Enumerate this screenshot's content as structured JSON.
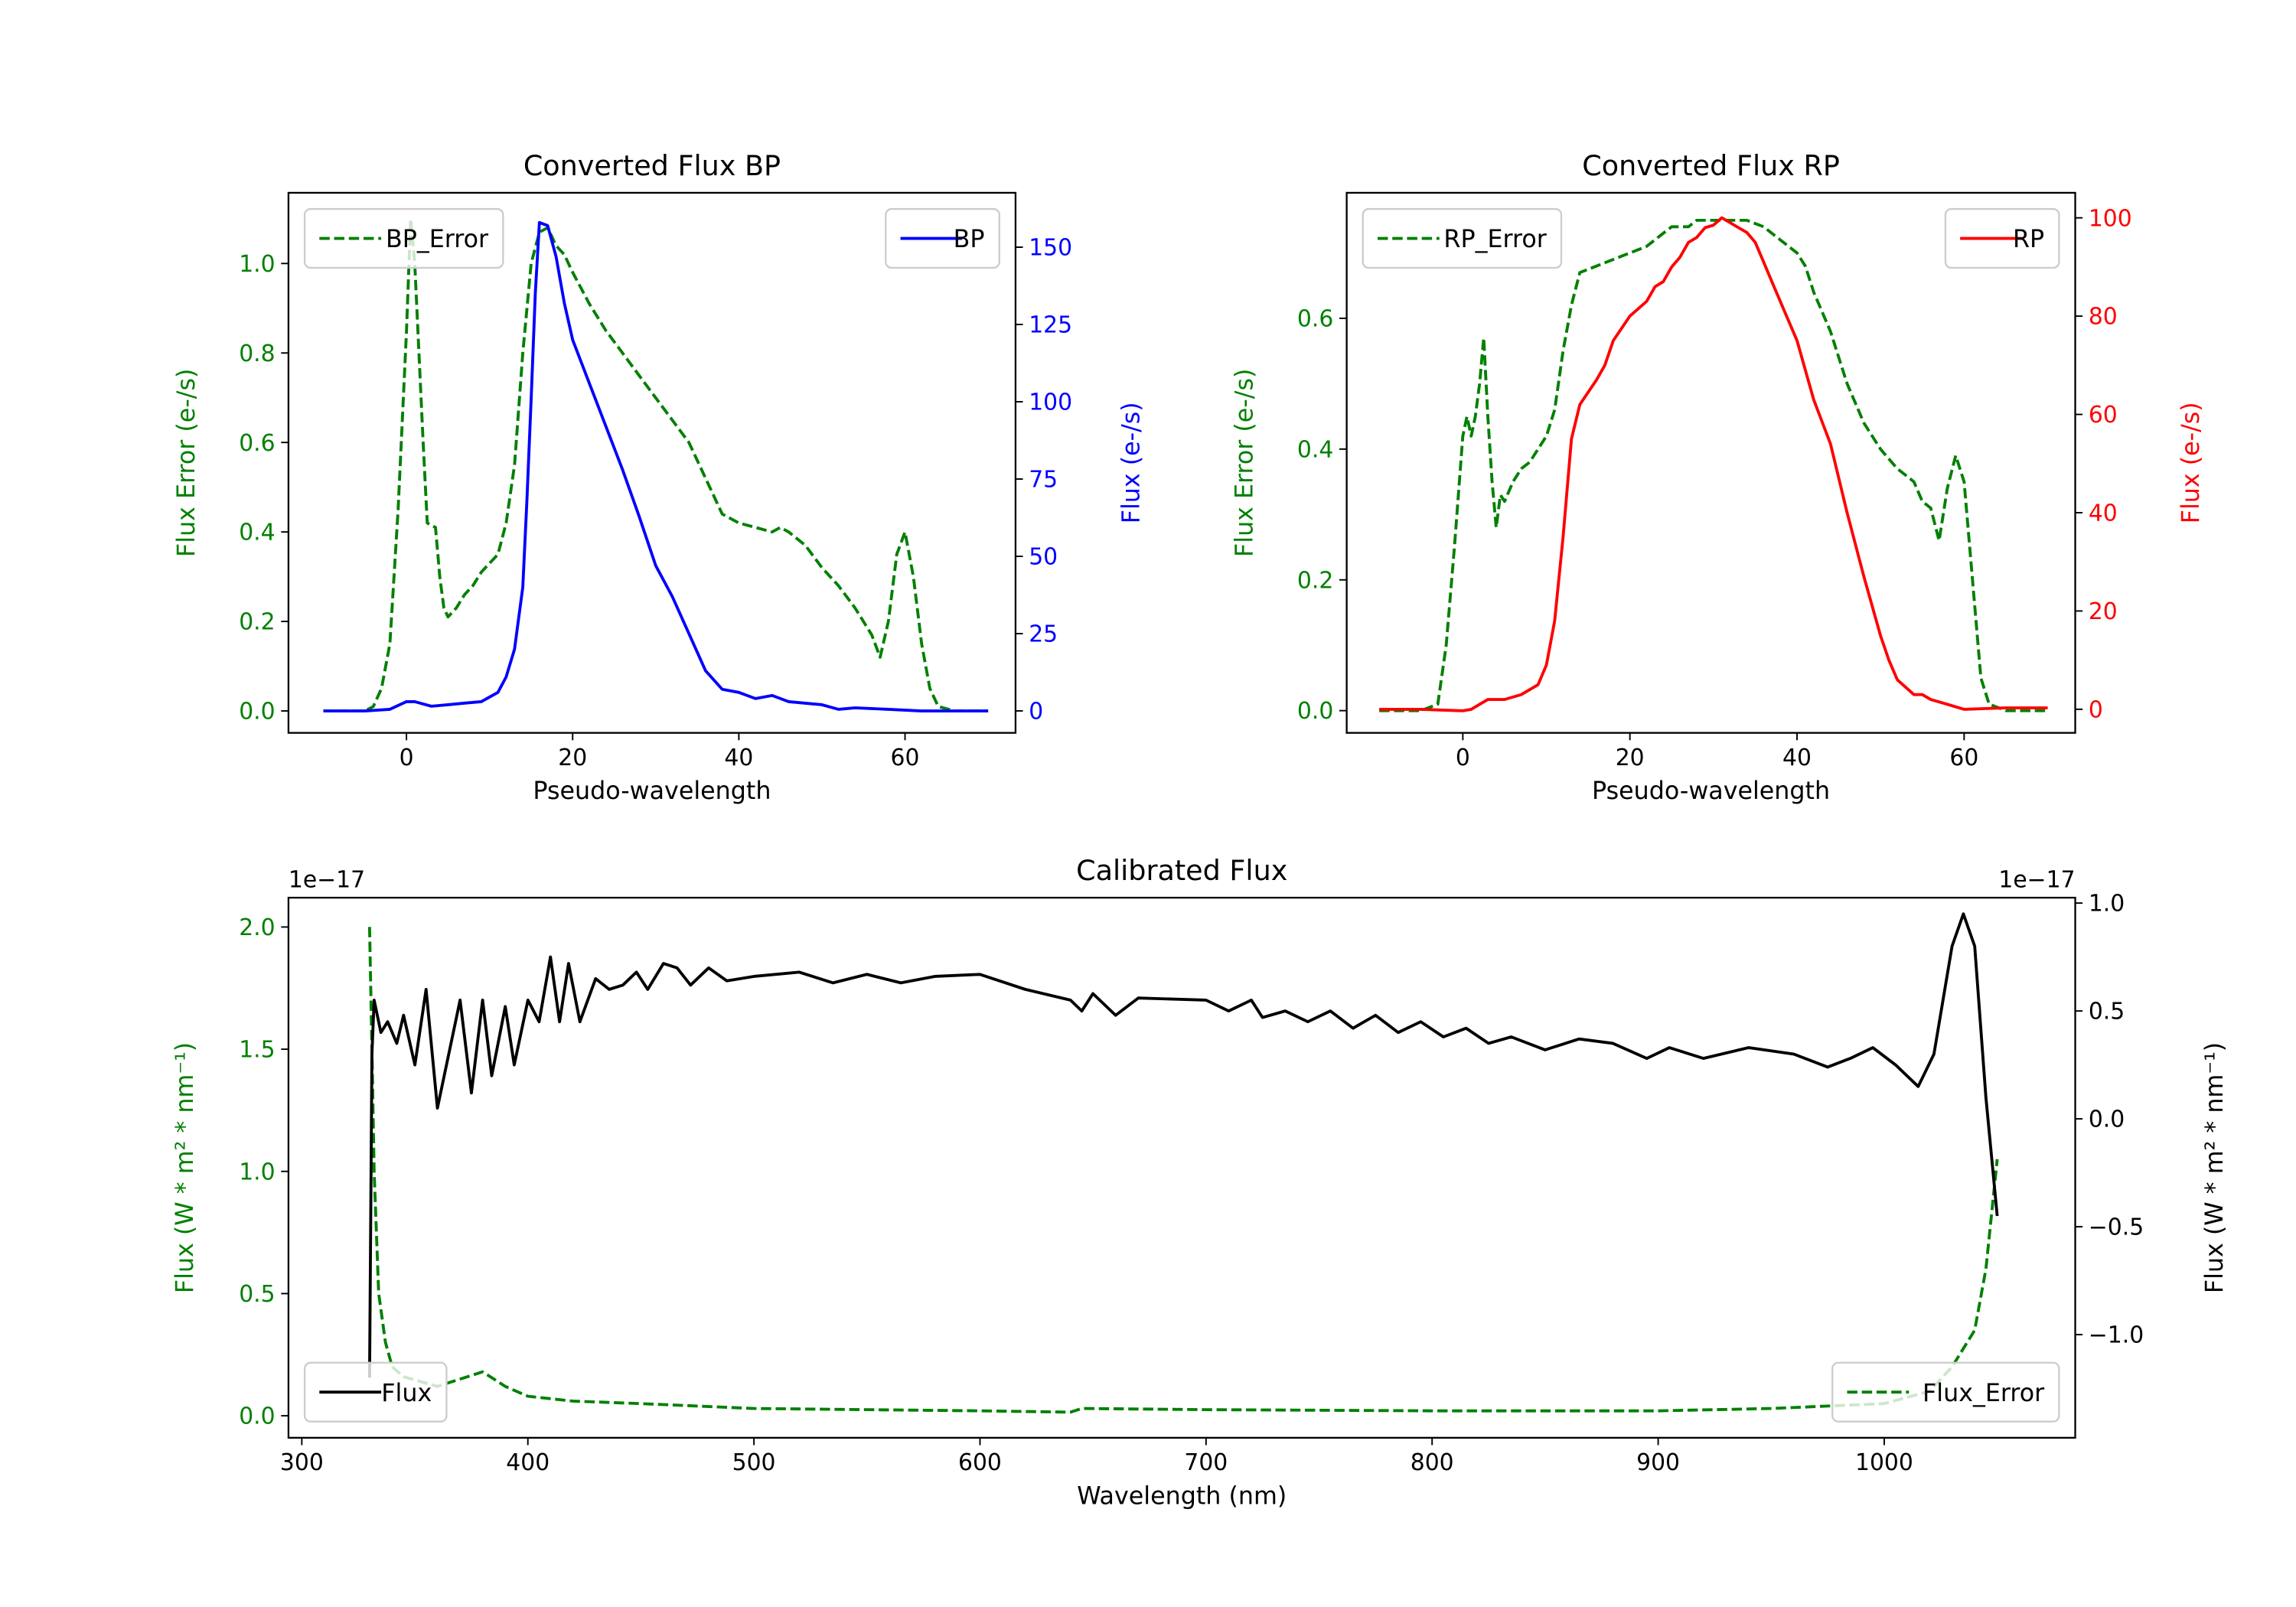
{
  "chart_data": [
    {
      "type": "line",
      "title": "Converted Flux BP",
      "xlabel": "Pseudo-wavelength",
      "ylabel_left": "Flux Error (e-/s)",
      "ylabel_right": "Flux (e-/s)",
      "left_color": "#008000",
      "right_color": "#0000ff",
      "xlim": [
        -14.2,
        73.3
      ],
      "ylim_left": [
        -0.049,
        1.158
      ],
      "ylim_right": [
        -7.1,
        167.6
      ],
      "xticks": {
        "values": [
          0,
          20,
          40,
          60
        ],
        "labels": [
          "0",
          "20",
          "40",
          "60"
        ]
      },
      "yticks_left": {
        "values": [
          0,
          0.2,
          0.4,
          0.6,
          0.8,
          1.0
        ],
        "labels": [
          "0.0",
          "0.2",
          "0.4",
          "0.6",
          "0.8",
          "1.0"
        ]
      },
      "yticks_right": {
        "values": [
          0,
          25,
          50,
          75,
          100,
          125,
          150
        ],
        "labels": [
          "0",
          "25",
          "50",
          "75",
          "100",
          "125",
          "150"
        ]
      },
      "grid": false,
      "legend_left": "upper-left",
      "legend_right": "upper-right",
      "series": [
        {
          "name": "BP_Error",
          "axis": "left",
          "style": "dashed",
          "color": "#008000",
          "x": [
            -10,
            -5,
            -4,
            -3,
            -2,
            -1,
            0,
            0.5,
            1,
            2,
            2.5,
            3.5,
            4,
            4.5,
            5,
            6,
            7,
            8,
            9,
            10,
            11,
            12,
            13,
            14,
            15,
            16,
            17,
            18,
            19,
            20,
            22,
            24,
            26,
            28,
            30,
            32,
            34,
            36,
            38,
            40,
            42,
            44,
            45,
            46,
            48,
            50,
            52,
            54,
            56,
            57,
            58,
            59,
            60,
            61,
            62,
            63,
            64,
            66,
            70
          ],
          "y": [
            0,
            0,
            0.01,
            0.05,
            0.15,
            0.45,
            0.85,
            1.1,
            1.0,
            0.6,
            0.42,
            0.41,
            0.3,
            0.23,
            0.21,
            0.23,
            0.26,
            0.28,
            0.31,
            0.33,
            0.35,
            0.42,
            0.55,
            0.8,
            1.0,
            1.07,
            1.08,
            1.04,
            1.02,
            0.98,
            0.91,
            0.85,
            0.8,
            0.75,
            0.7,
            0.65,
            0.6,
            0.52,
            0.44,
            0.42,
            0.41,
            0.4,
            0.41,
            0.4,
            0.37,
            0.32,
            0.28,
            0.23,
            0.17,
            0.12,
            0.2,
            0.35,
            0.4,
            0.3,
            0.15,
            0.05,
            0.01,
            0,
            0
          ]
        },
        {
          "name": "BP",
          "axis": "right",
          "style": "solid",
          "color": "#0000ff",
          "x": [
            -10,
            -5,
            -2,
            0,
            1,
            3,
            5,
            7,
            9,
            11,
            12,
            13,
            14,
            14.5,
            15,
            15.5,
            16,
            17,
            18,
            19,
            20,
            22,
            24,
            26,
            28,
            30,
            32,
            34,
            36,
            38,
            40,
            42,
            44,
            46,
            50,
            52,
            54,
            58,
            62,
            70
          ],
          "y": [
            0,
            0,
            0.5,
            3,
            3,
            1.5,
            2,
            2.5,
            3,
            6,
            11,
            20,
            40,
            68,
            101,
            135,
            158,
            157,
            147,
            132,
            120,
            106,
            92,
            78,
            63,
            47,
            37,
            25,
            13,
            7,
            6,
            4,
            5,
            3,
            2,
            0.5,
            1,
            0.5,
            0,
            0
          ]
        }
      ]
    },
    {
      "type": "line",
      "title": "Converted Flux RP",
      "xlabel": "Pseudo-wavelength",
      "ylabel_left": "Flux Error (e-/s)",
      "ylabel_right": "Flux (e-/s)",
      "left_color": "#008000",
      "right_color": "#ff0000",
      "xlim": [
        -13.9,
        73.3
      ],
      "ylim_left": [
        -0.034,
        0.792
      ],
      "ylim_right": [
        -4.8,
        105.1
      ],
      "xticks": {
        "values": [
          0,
          20,
          40,
          60
        ],
        "labels": [
          "0",
          "20",
          "40",
          "60"
        ]
      },
      "yticks_left": {
        "values": [
          0,
          0.2,
          0.4,
          0.6
        ],
        "labels": [
          "0.0",
          "0.2",
          "0.4",
          "0.6"
        ]
      },
      "yticks_right": {
        "values": [
          0,
          20,
          40,
          60,
          80,
          100
        ],
        "labels": [
          "0",
          "20",
          "40",
          "60",
          "80",
          "100"
        ]
      },
      "grid": false,
      "legend_left": "upper-left",
      "legend_right": "upper-right",
      "series": [
        {
          "name": "RP_Error",
          "axis": "left",
          "style": "dashed",
          "color": "#008000",
          "x": [
            -10,
            -5,
            -3,
            -2,
            -1,
            0,
            0.5,
            1,
            1.5,
            2,
            2.5,
            3,
            3.5,
            4,
            4.5,
            5,
            6,
            7,
            8,
            10,
            11,
            12,
            13,
            14,
            16,
            18,
            20,
            22,
            24,
            25,
            27,
            28,
            30,
            32,
            34,
            36,
            38,
            40,
            41,
            42,
            44,
            46,
            48,
            50,
            52,
            53,
            54,
            55,
            56,
            57,
            58,
            59,
            60,
            61,
            62,
            63,
            65,
            70
          ],
          "y": [
            0,
            0,
            0.01,
            0.1,
            0.25,
            0.42,
            0.45,
            0.42,
            0.45,
            0.5,
            0.57,
            0.45,
            0.35,
            0.28,
            0.33,
            0.32,
            0.35,
            0.37,
            0.38,
            0.42,
            0.46,
            0.55,
            0.62,
            0.67,
            0.68,
            0.69,
            0.7,
            0.71,
            0.73,
            0.74,
            0.74,
            0.75,
            0.75,
            0.75,
            0.75,
            0.74,
            0.72,
            0.7,
            0.68,
            0.64,
            0.58,
            0.5,
            0.44,
            0.4,
            0.37,
            0.36,
            0.35,
            0.32,
            0.31,
            0.26,
            0.34,
            0.39,
            0.35,
            0.2,
            0.05,
            0.01,
            0,
            0
          ]
        },
        {
          "name": "RP",
          "axis": "right",
          "style": "solid",
          "color": "#ff0000",
          "x": [
            -10,
            -5,
            0,
            1,
            3,
            5,
            7,
            9,
            10,
            11,
            12,
            13,
            14,
            16,
            17,
            18,
            20,
            22,
            23,
            24,
            25,
            26,
            27,
            28,
            29,
            30,
            31,
            32,
            33,
            34,
            35,
            36,
            37,
            38,
            40,
            42,
            44,
            46,
            48,
            50,
            51,
            52,
            54,
            55,
            56,
            58,
            60,
            65,
            70
          ],
          "y": [
            0,
            0,
            -0.3,
            0,
            2,
            2,
            3,
            5,
            9,
            18,
            35,
            55,
            62,
            67,
            70,
            75,
            80,
            83,
            86,
            87,
            90,
            92,
            95,
            96,
            98,
            98.5,
            100,
            99,
            98,
            97,
            95,
            91,
            87,
            83,
            75,
            63,
            54,
            40,
            27,
            15,
            10,
            6,
            3,
            3,
            2,
            1,
            0,
            0.3,
            0.3
          ]
        }
      ]
    },
    {
      "type": "line",
      "title": "Calibrated Flux",
      "xlabel": "Wavelength (nm)",
      "ylabel_left": "Flux (W * m² * nm⁻¹)",
      "ylabel_right": "Flux (W * m² * nm⁻¹)",
      "offset_left": "1e−17",
      "offset_right": "1e−17",
      "left_color": "#008000",
      "right_color": "#000000",
      "xlim": [
        294.1,
        1084.5
      ],
      "ylim_left": [
        -0.09,
        2.12
      ],
      "ylim_right": [
        -1.478,
        1.025
      ],
      "xticks": {
        "values": [
          300,
          400,
          500,
          600,
          700,
          800,
          900,
          1000
        ],
        "labels": [
          "300",
          "400",
          "500",
          "600",
          "700",
          "800",
          "900",
          "1000"
        ]
      },
      "yticks_left": {
        "values": [
          0,
          0.5,
          1.0,
          1.5,
          2.0
        ],
        "labels": [
          "0.0",
          "0.5",
          "1.0",
          "1.5",
          "2.0"
        ]
      },
      "yticks_right": {
        "values": [
          -1.0,
          -0.5,
          0,
          0.5,
          1.0
        ],
        "labels": [
          "−1.0",
          "−0.5",
          "0.0",
          "0.5",
          "1.0"
        ]
      },
      "grid": false,
      "legend_left": "lower-right",
      "legend_right": "lower-left",
      "series": [
        {
          "name": "Flux_Error",
          "axis": "left",
          "style": "dashed",
          "color": "#008000",
          "x": [
            330,
            331,
            332,
            334,
            337,
            340,
            345,
            360,
            380,
            390,
            400,
            420,
            450,
            500,
            550,
            600,
            640,
            645,
            700,
            800,
            900,
            950,
            1000,
            1020,
            1030,
            1040,
            1045,
            1050
          ],
          "y": [
            2.0,
            1.5,
            1.0,
            0.5,
            0.3,
            0.2,
            0.16,
            0.12,
            0.18,
            0.12,
            0.08,
            0.06,
            0.05,
            0.03,
            0.025,
            0.02,
            0.015,
            0.03,
            0.025,
            0.02,
            0.02,
            0.03,
            0.05,
            0.1,
            0.2,
            0.35,
            0.6,
            1.05
          ]
        },
        {
          "name": "Flux",
          "axis": "right",
          "style": "solid",
          "color": "#000000",
          "x": [
            330,
            331,
            332,
            335,
            338,
            342,
            345,
            350,
            355,
            360,
            365,
            370,
            375,
            380,
            384,
            390,
            394,
            400,
            405,
            410,
            414,
            418,
            423,
            430,
            436,
            442,
            448,
            453,
            460,
            466,
            472,
            480,
            488,
            500,
            520,
            535,
            550,
            565,
            580,
            600,
            620,
            640,
            645,
            650,
            660,
            670,
            700,
            710,
            720,
            725,
            735,
            745,
            755,
            765,
            775,
            785,
            795,
            805,
            815,
            825,
            835,
            850,
            865,
            880,
            895,
            905,
            920,
            940,
            960,
            975,
            985,
            995,
            1005,
            1015,
            1022,
            1030,
            1035,
            1040,
            1045,
            1050
          ],
          "y": [
            -1.2,
            0.3,
            0.55,
            0.4,
            0.45,
            0.35,
            0.48,
            0.25,
            0.6,
            0.05,
            0.3,
            0.55,
            0.12,
            0.55,
            0.2,
            0.52,
            0.25,
            0.55,
            0.45,
            0.75,
            0.45,
            0.72,
            0.45,
            0.65,
            0.6,
            0.62,
            0.68,
            0.6,
            0.72,
            0.7,
            0.62,
            0.7,
            0.64,
            0.66,
            0.68,
            0.63,
            0.67,
            0.63,
            0.66,
            0.67,
            0.6,
            0.55,
            0.5,
            0.58,
            0.48,
            0.56,
            0.55,
            0.5,
            0.55,
            0.47,
            0.5,
            0.45,
            0.5,
            0.42,
            0.48,
            0.4,
            0.45,
            0.38,
            0.42,
            0.35,
            0.38,
            0.32,
            0.37,
            0.35,
            0.28,
            0.33,
            0.28,
            0.33,
            0.3,
            0.24,
            0.28,
            0.33,
            0.25,
            0.15,
            0.3,
            0.8,
            0.95,
            0.8,
            0.1,
            -0.45
          ]
        }
      ]
    }
  ]
}
